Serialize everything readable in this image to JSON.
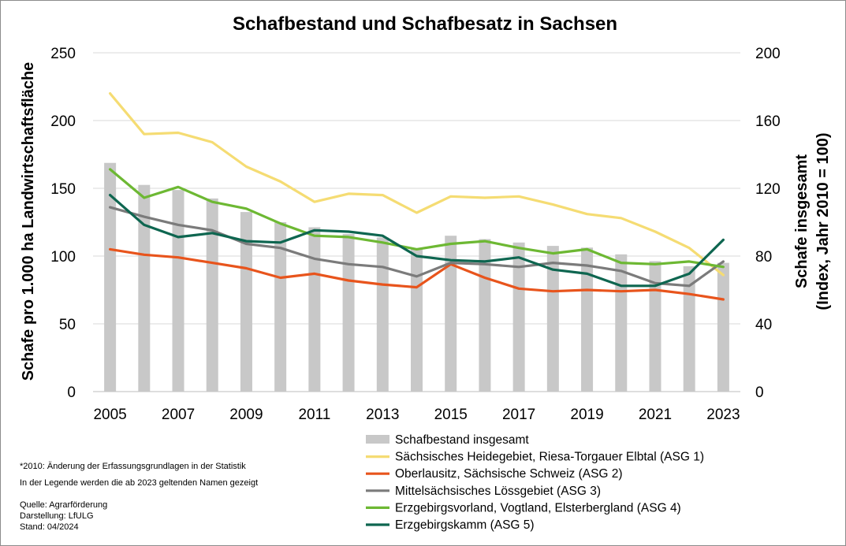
{
  "chart_data": {
    "type": "bar+line",
    "title": "Schafbestand und Schafbesatz in Sachsen",
    "ylabel_left": "Schafe pro 1.000 ha Landwirtschaftsfläche",
    "ylabel_right_line1": "Schafe insgesamt",
    "ylabel_right_line2": "(Index, Jahr 2010 = 100)",
    "x": [
      2005,
      2006,
      2007,
      2008,
      2009,
      2010,
      2011,
      2012,
      2013,
      2014,
      2015,
      2016,
      2017,
      2018,
      2019,
      2020,
      2021,
      2022,
      2023
    ],
    "x_tick_labels": [
      "2005",
      "2007",
      "2009",
      "2011",
      "2013",
      "2015",
      "2017",
      "2019",
      "2021",
      "2023"
    ],
    "ylim_left": [
      0,
      250
    ],
    "yticks_left": [
      "0",
      "50",
      "100",
      "150",
      "200",
      "250"
    ],
    "ylim_right": [
      0,
      200
    ],
    "yticks_right": [
      "0",
      "40",
      "80",
      "120",
      "160",
      "200"
    ],
    "grid": true,
    "bars": {
      "name": "Schafbestand insgesamt",
      "axis": "right",
      "color": "#c8c8c8",
      "values": [
        135,
        122,
        119,
        114,
        106,
        100,
        97,
        93,
        91,
        84,
        92,
        90,
        88,
        86,
        85,
        81,
        77,
        74,
        76
      ]
    },
    "series": [
      {
        "name": "Sächsisches Heidegebiet, Riesa-Torgauer Elbtal (ASG 1)",
        "color": "#f5dc73",
        "values": [
          220,
          190,
          191,
          184,
          166,
          155,
          140,
          146,
          145,
          132,
          144,
          143,
          144,
          138,
          131,
          128,
          118,
          106,
          86
        ]
      },
      {
        "name": "Oberlausitz, Sächsische Schweiz (ASG 2)",
        "color": "#e8541c",
        "values": [
          105,
          101,
          99,
          95,
          91,
          84,
          87,
          82,
          79,
          77,
          94,
          84,
          76,
          74,
          75,
          74,
          75,
          72,
          68
        ]
      },
      {
        "name": "Mittelsächsisches Lössgebiet (ASG 3)",
        "color": "#7b7b7b",
        "values": [
          136,
          129,
          123,
          119,
          109,
          106,
          98,
          94,
          92,
          85,
          95,
          94,
          92,
          95,
          93,
          89,
          80,
          78,
          96
        ]
      },
      {
        "name": "Erzgebirgsvorland, Vogtland, Elsterbergland (ASG 4)",
        "color": "#6db833",
        "values": [
          164,
          143,
          151,
          140,
          135,
          124,
          115,
          114,
          110,
          105,
          109,
          111,
          106,
          102,
          105,
          95,
          94,
          96,
          92
        ]
      },
      {
        "name": "Erzgebirgskamm (ASG 5)",
        "color": "#0e6650",
        "values": [
          145,
          123,
          114,
          117,
          111,
          110,
          119,
          118,
          115,
          100,
          97,
          96,
          99,
          90,
          87,
          78,
          78,
          87,
          112
        ]
      }
    ]
  },
  "notes": {
    "note1": "*2010: Änderung der Erfassungsgrundlagen in der Statistik",
    "note2": "In der Legende werden die ab 2023 geltenden Namen gezeigt",
    "source1": "Quelle: Agrarförderung",
    "source2": "Darstellung: LfULG",
    "source3": "Stand: 04/2024"
  }
}
